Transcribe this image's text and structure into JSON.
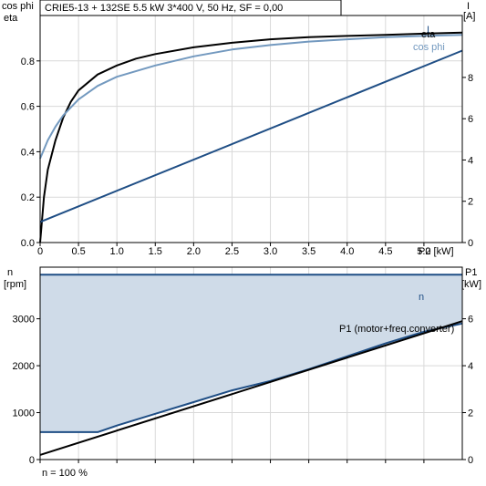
{
  "header": {
    "title": "CRIE5-13 + 132SE   5.5 kW   3*400 V, 50 Hz, SF = 0,00"
  },
  "footer": {
    "note": "n = 100 %"
  },
  "colors": {
    "eta": "#000000",
    "cosphi": "#7399bf",
    "current": "#1f4e85",
    "speed": "#1f4e85",
    "speed_fill": "#cfdbe8",
    "p1": "#000000",
    "p1_freq": "#1f4e85",
    "grid": "#d9d9d9",
    "axis": "#000000",
    "text": "#000000"
  },
  "chart_data": [
    {
      "type": "line",
      "panel": "top",
      "xlabel": "P2 [kW]",
      "ylabel_left": [
        "cos phi",
        "eta"
      ],
      "ylabel_right": [
        "I",
        "[A]"
      ],
      "xlim": [
        0,
        5.5
      ],
      "ylim_left": [
        0,
        1
      ],
      "ylim_right": [
        0,
        11
      ],
      "x_ticks": [
        "0",
        "0.5",
        "1.0",
        "1.5",
        "2.0",
        "2.5",
        "3.0",
        "3.5",
        "4.0",
        "4.5",
        "5.0"
      ],
      "x_tick_values": [
        0,
        0.5,
        1.0,
        1.5,
        2.0,
        2.5,
        3.0,
        3.5,
        4.0,
        4.5,
        5.0
      ],
      "y_left_ticks": [
        "0.0",
        "0.2",
        "0.4",
        "0.6",
        "0.8"
      ],
      "y_left_tick_values": [
        0,
        0.2,
        0.4,
        0.6,
        0.8
      ],
      "y_right_ticks": [
        "0",
        "2",
        "4",
        "6",
        "8"
      ],
      "y_right_tick_values": [
        0,
        2,
        4,
        6,
        8
      ],
      "grid": true,
      "series": [
        {
          "name": "eta",
          "axis": "left",
          "x": [
            0,
            0.05,
            0.1,
            0.2,
            0.3,
            0.4,
            0.5,
            0.75,
            1.0,
            1.25,
            1.5,
            2.0,
            2.5,
            3.0,
            3.5,
            4.0,
            4.5,
            5.0,
            5.5
          ],
          "y": [
            0.0,
            0.2,
            0.32,
            0.45,
            0.55,
            0.62,
            0.67,
            0.74,
            0.78,
            0.81,
            0.83,
            0.86,
            0.88,
            0.895,
            0.905,
            0.91,
            0.915,
            0.92,
            0.925
          ]
        },
        {
          "name": "cos phi",
          "axis": "left",
          "x": [
            0,
            0.1,
            0.2,
            0.3,
            0.5,
            0.75,
            1.0,
            1.5,
            2.0,
            2.5,
            3.0,
            3.5,
            4.0,
            4.5,
            5.0,
            5.5
          ],
          "y": [
            0.37,
            0.45,
            0.51,
            0.56,
            0.63,
            0.69,
            0.73,
            0.78,
            0.82,
            0.85,
            0.87,
            0.885,
            0.895,
            0.905,
            0.91,
            0.915
          ]
        },
        {
          "name": "I",
          "axis": "right",
          "x": [
            0,
            5.5
          ],
          "y": [
            1.0,
            9.3
          ]
        }
      ]
    },
    {
      "type": "line",
      "panel": "bottom",
      "xlim": [
        0,
        5.5
      ],
      "ylabel_left": [
        "n",
        "[rpm]"
      ],
      "ylabel_right": [
        "P1",
        "[kW]"
      ],
      "ylim_left": [
        0,
        4100
      ],
      "ylim_right": [
        0,
        8.2
      ],
      "y_left_ticks": [
        "0",
        "1000",
        "2000",
        "3000"
      ],
      "y_left_tick_values": [
        0,
        1000,
        2000,
        3000
      ],
      "y_right_ticks": [
        "0",
        "2",
        "4",
        "6"
      ],
      "y_right_tick_values": [
        0,
        2,
        4,
        6
      ],
      "grid": true,
      "series": [
        {
          "name": "n",
          "axis": "left",
          "x": [
            0,
            5.5
          ],
          "y": [
            3940,
            3940
          ]
        },
        {
          "name": "P1 (motor+freq.converter)",
          "axis": "right",
          "x": [
            0,
            0.75,
            1.0,
            1.5,
            2.0,
            2.5,
            3.0,
            3.5,
            4.0,
            4.5,
            5.0,
            5.5
          ],
          "y": [
            1.17,
            1.17,
            1.45,
            1.95,
            2.45,
            2.95,
            3.35,
            3.85,
            4.4,
            4.95,
            5.45,
            5.8
          ]
        },
        {
          "name": "P1",
          "axis": "right",
          "x": [
            0,
            5.5
          ],
          "y": [
            0.2,
            5.9
          ]
        }
      ]
    }
  ]
}
